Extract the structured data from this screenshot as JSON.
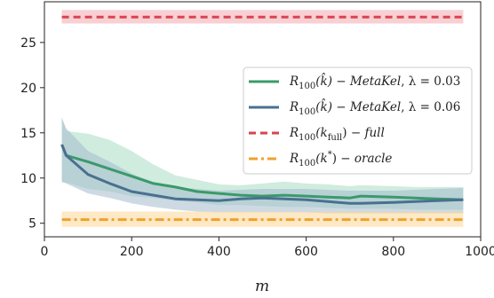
{
  "chart_data": {
    "type": "line",
    "xlabel": "m",
    "ylabel": "",
    "xlim": [
      0,
      1000
    ],
    "ylim": [
      3.5,
      29.5
    ],
    "xticks": [
      0,
      200,
      400,
      600,
      800,
      1000
    ],
    "yticks": [
      5,
      10,
      15,
      20,
      25
    ],
    "grid": false,
    "legend_position": "center-right",
    "series": [
      {
        "name": "R_100(k̂) − MetaKel, λ = 0.03",
        "legend_main": "R",
        "legend_sub": "100",
        "legend_arg": "(k̂)",
        "legend_method": "MetaKel",
        "legend_param": ", λ = 0.03",
        "color": "#3a9a6a",
        "band_color": "#a8dcc4",
        "style": "solid",
        "x": [
          40,
          50,
          100,
          150,
          200,
          250,
          300,
          350,
          400,
          450,
          500,
          550,
          600,
          650,
          700,
          725,
          800,
          850,
          900,
          960
        ],
        "y": [
          13.7,
          12.5,
          11.8,
          11.0,
          10.2,
          9.4,
          9.0,
          8.5,
          8.3,
          8.1,
          8.0,
          8.1,
          8.0,
          7.9,
          7.8,
          8.0,
          7.9,
          7.8,
          7.7,
          7.6
        ],
        "band_low": [
          9.5,
          9.5,
          8.8,
          8.5,
          8.0,
          7.8,
          7.5,
          7.3,
          7.0,
          7.0,
          6.9,
          6.8,
          6.8,
          6.7,
          6.6,
          6.6,
          6.6,
          6.5,
          6.5,
          6.5
        ],
        "band_high": [
          16.8,
          15.2,
          14.9,
          14.2,
          13.0,
          11.5,
          10.3,
          9.8,
          9.3,
          9.2,
          9.4,
          9.6,
          9.4,
          9.3,
          9.1,
          9.2,
          9.1,
          9.0,
          9.0,
          9.0
        ]
      },
      {
        "name": "R_100(k̂) − MetaKel, λ = 0.06",
        "legend_main": "R",
        "legend_sub": "100",
        "legend_arg": "(k̂)",
        "legend_method": "MetaKel",
        "legend_param": ", λ = 0.06",
        "color": "#4a7090",
        "band_color": "#a4bccc",
        "style": "solid",
        "x": [
          40,
          50,
          100,
          150,
          200,
          250,
          300,
          350,
          400,
          450,
          500,
          550,
          600,
          650,
          700,
          725,
          800,
          850,
          900,
          960
        ],
        "y": [
          13.7,
          12.5,
          10.4,
          9.4,
          8.5,
          8.1,
          7.7,
          7.6,
          7.5,
          7.7,
          7.8,
          7.7,
          7.6,
          7.4,
          7.2,
          7.2,
          7.3,
          7.4,
          7.5,
          7.6
        ],
        "band_low": [
          9.6,
          9.4,
          8.3,
          7.8,
          7.2,
          6.8,
          6.5,
          6.3,
          6.2,
          6.2,
          6.2,
          6.2,
          6.2,
          6.1,
          6.1,
          6.1,
          6.1,
          6.1,
          6.1,
          6.1
        ],
        "band_high": [
          16.6,
          15.5,
          13.0,
          11.8,
          10.5,
          9.5,
          9.0,
          8.8,
          8.6,
          8.7,
          8.8,
          8.8,
          8.8,
          8.7,
          8.6,
          8.6,
          8.6,
          8.7,
          8.8,
          8.9
        ]
      },
      {
        "name": "R_100(k_full) − full",
        "legend_main": "R",
        "legend_sub": "100",
        "legend_arg_pre": "(k",
        "legend_arg_sub": "full",
        "legend_arg_post": ")",
        "legend_method": "full",
        "color": "#d9434f",
        "band_color": "#f3a9ae",
        "style": "dashed",
        "x": [
          40,
          960
        ],
        "y": [
          27.8,
          27.8
        ],
        "band_low": [
          27.1,
          27.1
        ],
        "band_high": [
          28.6,
          28.6
        ]
      },
      {
        "name": "R_100(k*) − oracle",
        "legend_main": "R",
        "legend_sub": "100",
        "legend_arg_pre": "(k",
        "legend_arg_sup": "*",
        "legend_arg_post": ")",
        "legend_method": "oracle",
        "color": "#f0a12e",
        "band_color": "#fbd795",
        "style": "dashdot",
        "x": [
          40,
          960
        ],
        "y": [
          5.4,
          5.4
        ],
        "band_low": [
          4.6,
          4.6
        ],
        "band_high": [
          6.3,
          6.3
        ]
      }
    ]
  }
}
